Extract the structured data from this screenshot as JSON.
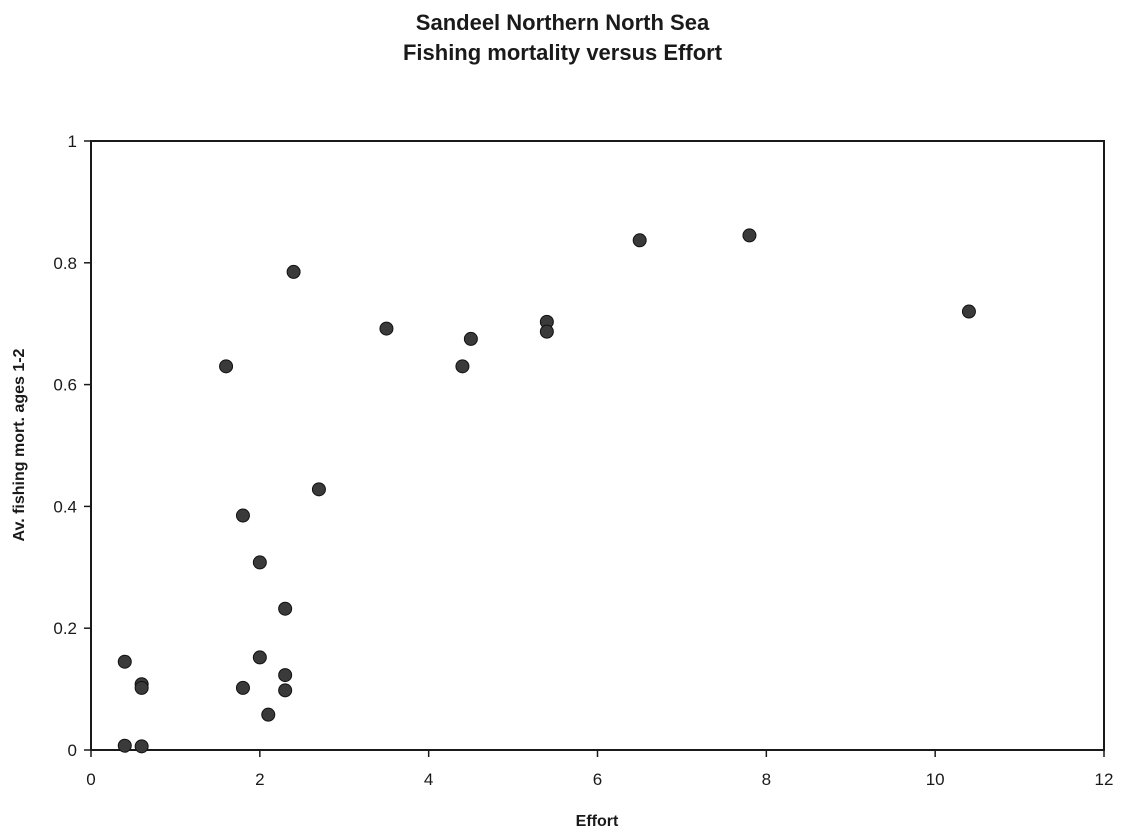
{
  "chart_data": {
    "type": "scatter",
    "title": "Sandeel Northern North Sea",
    "subtitle": "Fishing mortality versus Effort",
    "xlabel": "Effort",
    "ylabel": "Av. fishing mort. ages 1-2",
    "xlim": [
      0,
      12
    ],
    "ylim": [
      0,
      1
    ],
    "x_ticks": [
      "0",
      "2",
      "4",
      "6",
      "8",
      "10",
      "12"
    ],
    "y_ticks": [
      "0",
      "0.2",
      "0.4",
      "0.6",
      "0.8",
      "1"
    ],
    "grid": false,
    "legend": "none",
    "marker_color": "#3a3a3a",
    "points": [
      {
        "x": 0.4,
        "y": 0.145
      },
      {
        "x": 0.4,
        "y": 0.007
      },
      {
        "x": 0.6,
        "y": 0.108
      },
      {
        "x": 0.6,
        "y": 0.102
      },
      {
        "x": 0.6,
        "y": 0.006
      },
      {
        "x": 1.6,
        "y": 0.63
      },
      {
        "x": 1.8,
        "y": 0.385
      },
      {
        "x": 1.8,
        "y": 0.102
      },
      {
        "x": 2.0,
        "y": 0.308
      },
      {
        "x": 2.0,
        "y": 0.152
      },
      {
        "x": 2.1,
        "y": 0.058
      },
      {
        "x": 2.3,
        "y": 0.232
      },
      {
        "x": 2.3,
        "y": 0.123
      },
      {
        "x": 2.3,
        "y": 0.098
      },
      {
        "x": 2.4,
        "y": 0.785
      },
      {
        "x": 2.7,
        "y": 0.428
      },
      {
        "x": 3.5,
        "y": 0.692
      },
      {
        "x": 4.4,
        "y": 0.63
      },
      {
        "x": 4.5,
        "y": 0.675
      },
      {
        "x": 5.4,
        "y": 0.703
      },
      {
        "x": 5.4,
        "y": 0.687
      },
      {
        "x": 6.5,
        "y": 0.837
      },
      {
        "x": 7.8,
        "y": 0.845
      },
      {
        "x": 10.4,
        "y": 0.72
      }
    ]
  }
}
